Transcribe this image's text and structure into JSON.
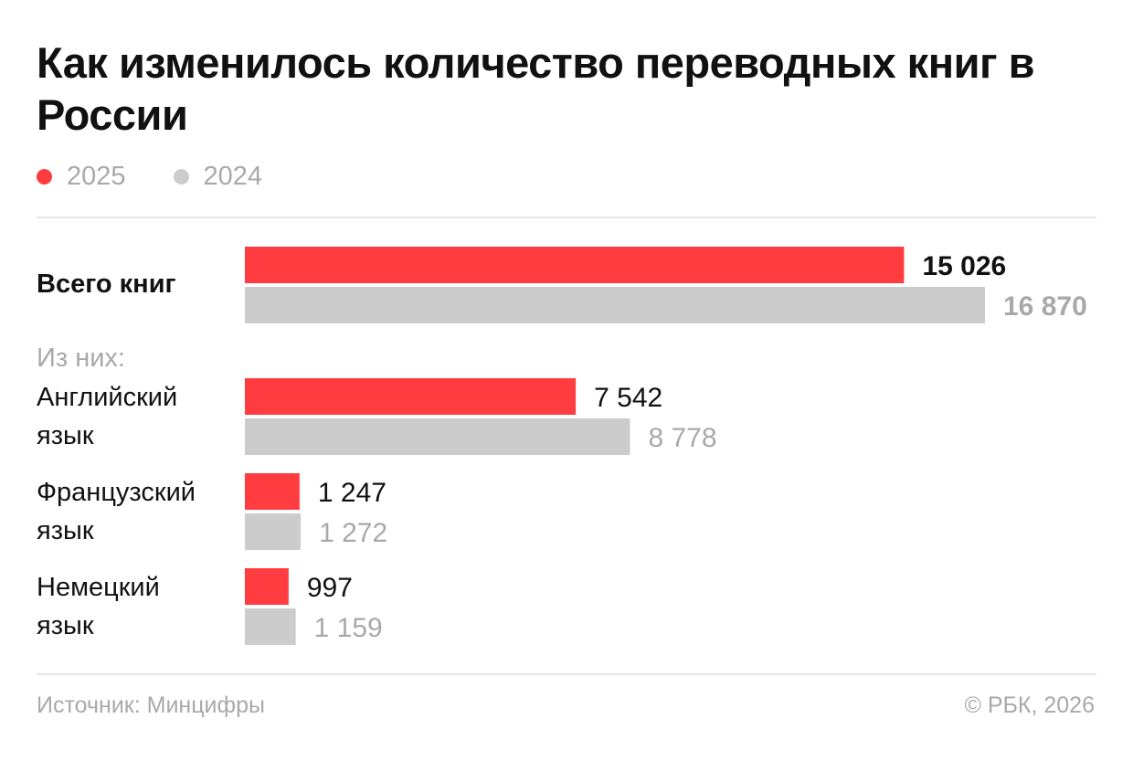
{
  "title": "Как изменилось количество переводных книг в России",
  "legend": [
    {
      "label": "2025",
      "color": "#ff3d40"
    },
    {
      "label": "2024",
      "color": "#cccccc"
    }
  ],
  "subheading": "Из них:",
  "source": "Источник: Минцифры",
  "copyright": "© РБК, 2026",
  "chart_data": {
    "type": "bar",
    "orientation": "horizontal",
    "title": "Как изменилось количество переводных книг в России",
    "categories": [
      "Всего книг",
      "Английский язык",
      "Французский язык",
      "Немецкий язык"
    ],
    "category_lines": [
      [
        "Всего книг"
      ],
      [
        "Английский",
        "язык"
      ],
      [
        "Французский",
        "язык"
      ],
      [
        "Немецкий",
        "язык"
      ]
    ],
    "series": [
      {
        "name": "2025",
        "color": "#ff3d40",
        "values": [
          15026,
          7542,
          1247,
          997
        ],
        "labels": [
          "15 026",
          "7 542",
          "1 247",
          "997"
        ]
      },
      {
        "name": "2024",
        "color": "#cccccc",
        "values": [
          16870,
          8778,
          1272,
          1159
        ],
        "labels": [
          "16 870",
          "8 778",
          "1 272",
          "1 159"
        ]
      }
    ],
    "value_label_colors": [
      "#111111",
      "#a9a9a9"
    ],
    "xlim": [
      0,
      16870
    ],
    "grid": false,
    "legend_position": "top-left"
  }
}
